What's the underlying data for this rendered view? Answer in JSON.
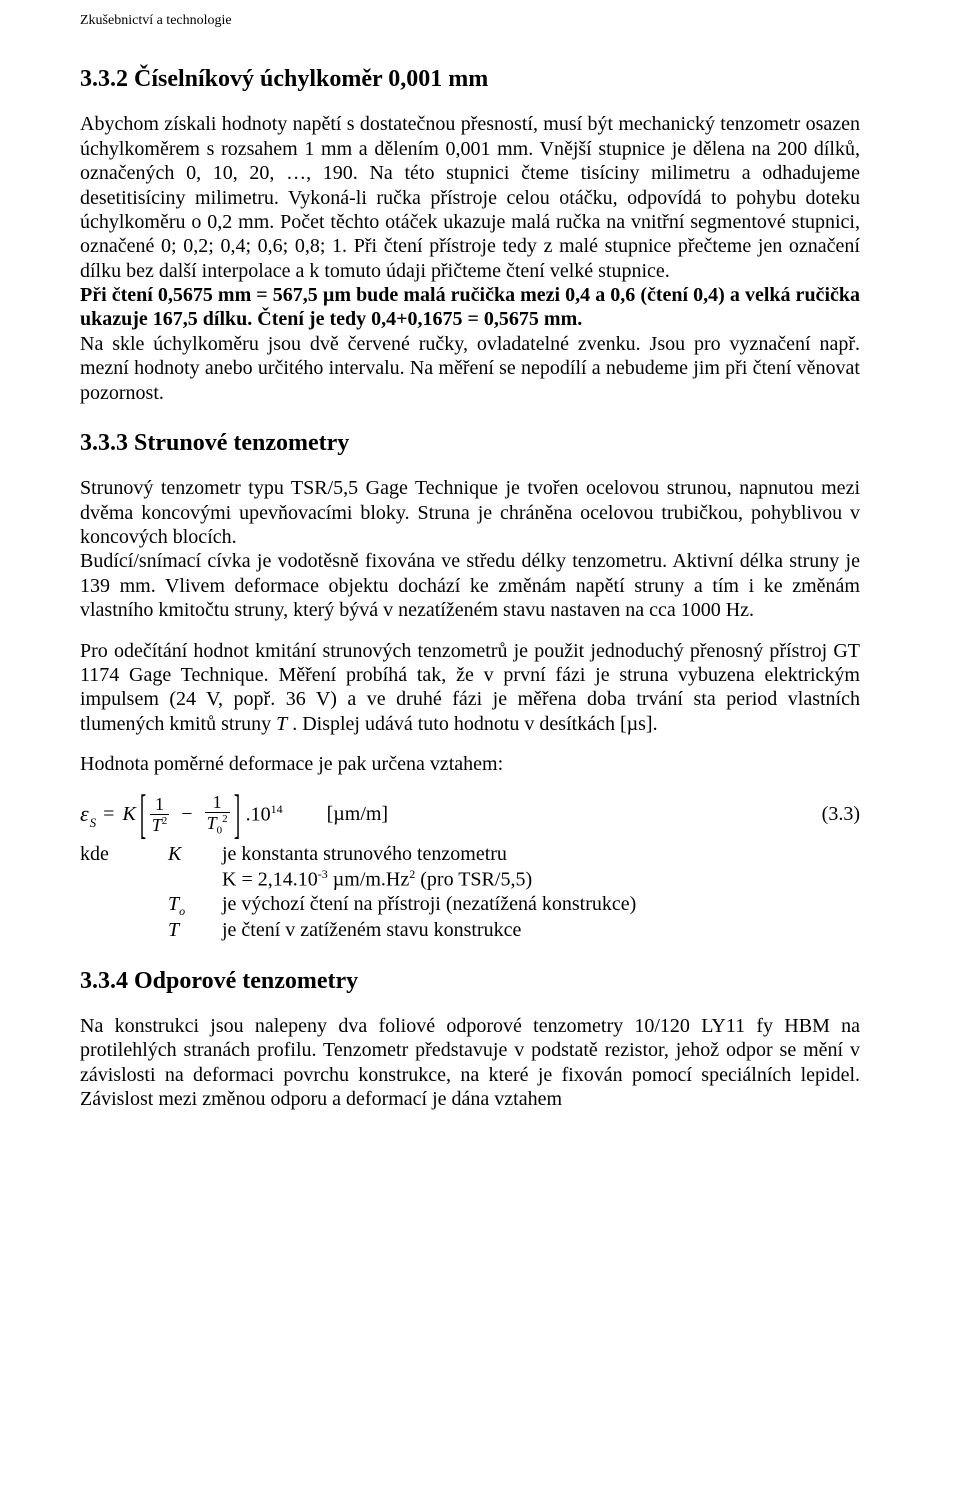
{
  "header": "Zkušebnictví a technologie",
  "sec332": {
    "title": "3.3.2 Číselníkový úchylkoměr 0,001 mm",
    "p1": "Abychom získali hodnoty napětí s dostatečnou přesností, musí být mechanický tenzometr osazen úchylkoměrem s rozsahem 1 mm a dělením 0,001 mm. Vnější stupnice je dělena na 200 dílků, označených 0, 10, 20, …, 190. Na této stupnici čteme tisíciny milimetru a odhadujeme desetitisíciny milimetru. Vykoná-li ručka přístroje celou otáčku, odpovídá to pohybu doteku úchylkoměru o 0,2 mm. Počet těchto otáček ukazuje malá ručka na vnitřní segmentové stupnici, označené 0; 0,2; 0,4; 0,6; 0,8; 1. Při čtení přístroje tedy z malé stupnice přečteme jen označení dílku bez další interpolace a k tomuto údaji přičteme čtení velké stupnice.",
    "p2_bold": "Při čtení 0,5675 mm = 567,5 µm bude malá ručička mezi 0,4 a 0,6 (čtení 0,4) a velká ručička ukazuje 167,5 dílku. Čtení je tedy 0,4+0,1675 = 0,5675 mm.",
    "p3": "Na skle úchylkoměru jsou dvě červené ručky, ovladatelné zvenku. Jsou pro vyznačení např. mezní hodnoty anebo určitého intervalu. Na měření se nepodílí a nebudeme jim při čtení věnovat pozornost."
  },
  "sec333": {
    "title": "3.3.3 Strunové tenzometry",
    "p1": "Strunový tenzometr typu TSR/5,5 Gage Technique je tvořen ocelovou strunou, napnutou mezi dvěma koncovými upevňovacími bloky. Struna je chráněna ocelovou trubičkou, pohyblivou v koncových blocích.",
    "p2": "Budící/snímací cívka je vodotěsně fixována ve středu délky tenzometru. Aktivní délka struny je 139 mm. Vlivem deformace objektu dochází ke změnám napětí struny a tím i ke změnám vlastního kmitočtu struny, který bývá v nezatíženém stavu nastaven na cca 1000 Hz.",
    "p3a": "Pro odečítání hodnot kmitání strunových tenzometrů je použit jednoduchý přenosný přístroj GT 1174 Gage Technique. Měření probíhá tak, že v první fázi je struna vybuzena elektrickým impulsem (24 V, popř. 36 V) a ve druhé fázi je měřena doba trvání sta period vlastních tlumených kmitů struny ",
    "p3b": " . Displej udává tuto hodnotu v desítkách [µs].",
    "p4": "Hodnota poměrné deformace je pak určena vztahem:",
    "eq": {
      "lhs_eps": "ε",
      "lhs_sub": "S",
      "K": "K",
      "num": "1",
      "T": "T",
      "exp2": "2",
      "sub0": "0",
      "ten": ".10",
      "exp14": "14",
      "unit": "[µm/m]",
      "eqnum": "(3.3)"
    },
    "where": {
      "kde": "kde",
      "K": "K",
      "K_txt": "je konstanta strunového tenzometru",
      "K_line2a": "K = 2,14.10",
      "K_line2b": "   µm/m.Hz",
      "K_line2c": "   (pro TSR/5,5)",
      "neg3": "-3",
      "two": "2",
      "To_sym": "T",
      "To_sub": "o",
      "To_txt": "je výchozí čtení na přístroji (nezatížená konstrukce)",
      "T_sym": "T",
      "T_txt": "je čtení v zatíženém stavu konstrukce"
    }
  },
  "sec334": {
    "title": "3.3.4   Odporové tenzometry",
    "p1": "Na konstrukci jsou nalepeny dva foliové odporové tenzometry 10/120 LY11 fy HBM na protilehlých stranách profilu. Tenzometr představuje v podstatě rezistor, jehož odpor se mění v závislosti na deformaci povrchu konstrukce, na které je fixován pomocí speciálních lepidel. Závislost mezi změnou odporu a deformací je dána vztahem"
  }
}
